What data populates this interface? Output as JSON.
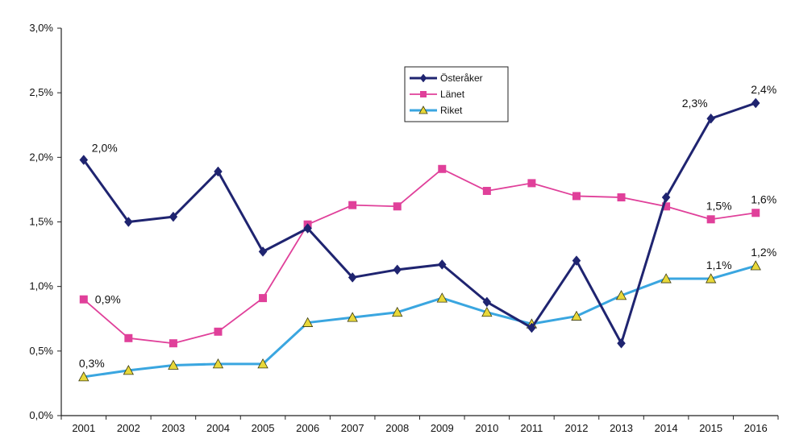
{
  "chart_data": {
    "type": "line",
    "title": "",
    "xlabel": "",
    "ylabel": "",
    "categories": [
      "2001",
      "2002",
      "2003",
      "2004",
      "2005",
      "2006",
      "2007",
      "2008",
      "2009",
      "2010",
      "2011",
      "2012",
      "2013",
      "2014",
      "2015",
      "2016"
    ],
    "y_ticks": [
      "0,0%",
      "0,5%",
      "1,0%",
      "1,5%",
      "2,0%",
      "2,5%",
      "3,0%"
    ],
    "ylim": [
      0,
      3.0
    ],
    "grid": false,
    "legend_placement": "top-center",
    "series": [
      {
        "name": "Österåker",
        "color": "#1f2470",
        "marker": "diamond",
        "values": [
          1.98,
          1.5,
          1.54,
          1.89,
          1.27,
          1.45,
          1.07,
          1.13,
          1.17,
          0.88,
          0.68,
          1.2,
          0.56,
          1.69,
          2.3,
          2.42
        ]
      },
      {
        "name": "Länet",
        "color": "#e0409a",
        "marker": "square",
        "values": [
          0.9,
          0.6,
          0.56,
          0.65,
          0.91,
          1.48,
          1.63,
          1.62,
          1.91,
          1.74,
          1.8,
          1.7,
          1.69,
          1.62,
          1.52,
          1.57
        ]
      },
      {
        "name": "Riket",
        "color": "#3aa6e0",
        "marker": "triangle",
        "values": [
          0.3,
          0.35,
          0.39,
          0.4,
          0.4,
          0.72,
          0.76,
          0.8,
          0.91,
          0.8,
          0.71,
          0.77,
          0.93,
          1.06,
          1.06,
          1.16
        ]
      }
    ],
    "annotations": [
      {
        "text": "2,0%",
        "series": 0,
        "index": 0,
        "pos": "above-right"
      },
      {
        "text": "0,9%",
        "series": 1,
        "index": 0,
        "pos": "right"
      },
      {
        "text": "0,3%",
        "series": 2,
        "index": 0,
        "pos": "above"
      },
      {
        "text": "2,3%",
        "series": 0,
        "index": 14,
        "pos": "above-left"
      },
      {
        "text": "2,4%",
        "series": 0,
        "index": 15,
        "pos": "above"
      },
      {
        "text": "1,5%",
        "series": 1,
        "index": 14,
        "pos": "above"
      },
      {
        "text": "1,6%",
        "series": 1,
        "index": 15,
        "pos": "above"
      },
      {
        "text": "1,1%",
        "series": 2,
        "index": 14,
        "pos": "above"
      },
      {
        "text": "1,2%",
        "series": 2,
        "index": 15,
        "pos": "above"
      }
    ]
  }
}
